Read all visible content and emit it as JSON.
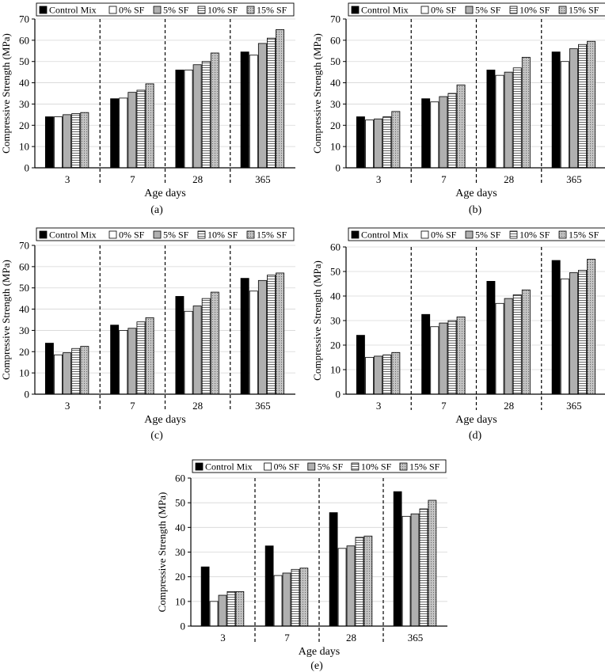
{
  "legend": {
    "entries": [
      "Control Mix",
      "0% SF",
      "5% SF",
      "10% SF",
      "15% SF"
    ]
  },
  "series_styles": [
    {
      "name": "Control Mix",
      "fill": "#000000",
      "pattern": "solid"
    },
    {
      "name": "0% SF",
      "fill": "#ffffff",
      "pattern": "solid"
    },
    {
      "name": "5% SF",
      "fill": "#b0b0b0",
      "pattern": "solid"
    },
    {
      "name": "10% SF",
      "fill": "#ffffff",
      "pattern": "hlines"
    },
    {
      "name": "15% SF",
      "fill": "#c4c4c4",
      "pattern": "dots"
    }
  ],
  "chart_data": [
    {
      "type": "bar",
      "panel_label": "(a)",
      "xlabel": "Age days",
      "ylabel": "Compressive Strength (MPa)",
      "categories": [
        "3",
        "7",
        "28",
        "365"
      ],
      "ylim": [
        0,
        70
      ],
      "yticks": [
        "0",
        "10",
        "20",
        "30",
        "40",
        "50",
        "60",
        "70"
      ],
      "grid": true,
      "series": [
        {
          "name": "Control Mix",
          "values": [
            24,
            32.5,
            46,
            54.5
          ]
        },
        {
          "name": "0% SF",
          "values": [
            24,
            32.8,
            46,
            53
          ]
        },
        {
          "name": "5% SF",
          "values": [
            25,
            35.5,
            48.5,
            58.5
          ]
        },
        {
          "name": "10% SF",
          "values": [
            25.5,
            36.5,
            50,
            61
          ]
        },
        {
          "name": "15% SF",
          "values": [
            26,
            39.5,
            54,
            65
          ]
        }
      ]
    },
    {
      "type": "bar",
      "panel_label": "(b)",
      "xlabel": "Age days",
      "ylabel": "Compressive Strength (MPa)",
      "categories": [
        "3",
        "7",
        "28",
        "365"
      ],
      "ylim": [
        0,
        70
      ],
      "yticks": [
        "0",
        "10",
        "20",
        "30",
        "40",
        "50",
        "60",
        "70"
      ],
      "grid": true,
      "series": [
        {
          "name": "Control Mix",
          "values": [
            24,
            32.5,
            46,
            54.5
          ]
        },
        {
          "name": "0% SF",
          "values": [
            22.5,
            31,
            43.5,
            50
          ]
        },
        {
          "name": "5% SF",
          "values": [
            23,
            33.5,
            45,
            56
          ]
        },
        {
          "name": "10% SF",
          "values": [
            24,
            35,
            47,
            58
          ]
        },
        {
          "name": "15% SF",
          "values": [
            26.5,
            39,
            52,
            59.5
          ]
        }
      ]
    },
    {
      "type": "bar",
      "panel_label": "(c)",
      "xlabel": "Age days",
      "ylabel": "Compressive Strength (MPa)",
      "categories": [
        "3",
        "7",
        "28",
        "365"
      ],
      "ylim": [
        0,
        70
      ],
      "yticks": [
        "0",
        "10",
        "20",
        "30",
        "40",
        "50",
        "60",
        "70"
      ],
      "grid": true,
      "series": [
        {
          "name": "Control Mix",
          "values": [
            24,
            32.5,
            46,
            54.5
          ]
        },
        {
          "name": "0% SF",
          "values": [
            18.5,
            30,
            39,
            48.5
          ]
        },
        {
          "name": "5% SF",
          "values": [
            19.5,
            31,
            41.5,
            53.5
          ]
        },
        {
          "name": "10% SF",
          "values": [
            21.5,
            34,
            45,
            56
          ]
        },
        {
          "name": "15% SF",
          "values": [
            22.5,
            36,
            48,
            57
          ]
        }
      ]
    },
    {
      "type": "bar",
      "panel_label": "(d)",
      "xlabel": "Age days",
      "ylabel": "Compressive Strength (MPa)",
      "categories": [
        "3",
        "7",
        "28",
        "365"
      ],
      "ylim": [
        0,
        60
      ],
      "yticks": [
        "0",
        "10",
        "20",
        "30",
        "40",
        "50",
        "60"
      ],
      "grid": true,
      "series": [
        {
          "name": "Control Mix",
          "values": [
            24,
            32.5,
            46,
            54.5
          ]
        },
        {
          "name": "0% SF",
          "values": [
            15,
            27.5,
            37,
            47
          ]
        },
        {
          "name": "5% SF",
          "values": [
            15.5,
            29,
            39,
            49.5
          ]
        },
        {
          "name": "10% SF",
          "values": [
            16,
            30,
            40.5,
            50.5
          ]
        },
        {
          "name": "15% SF",
          "values": [
            17,
            31.5,
            42.5,
            55
          ]
        }
      ]
    },
    {
      "type": "bar",
      "panel_label": "(e)",
      "xlabel": "Age days",
      "ylabel": "Compressive Strength (MPa)",
      "categories": [
        "3",
        "7",
        "28",
        "365"
      ],
      "ylim": [
        0,
        60
      ],
      "yticks": [
        "0",
        "10",
        "20",
        "30",
        "40",
        "50",
        "60"
      ],
      "grid": true,
      "series": [
        {
          "name": "Control Mix",
          "values": [
            24,
            32.5,
            46,
            54.5
          ]
        },
        {
          "name": "0% SF",
          "values": [
            10,
            20.5,
            31.5,
            44.5
          ]
        },
        {
          "name": "5% SF",
          "values": [
            12.5,
            21.5,
            32.5,
            45.5
          ]
        },
        {
          "name": "10% SF",
          "values": [
            14,
            23,
            36,
            47.5
          ]
        },
        {
          "name": "15% SF",
          "values": [
            14,
            23.5,
            36.5,
            51
          ]
        }
      ]
    }
  ]
}
